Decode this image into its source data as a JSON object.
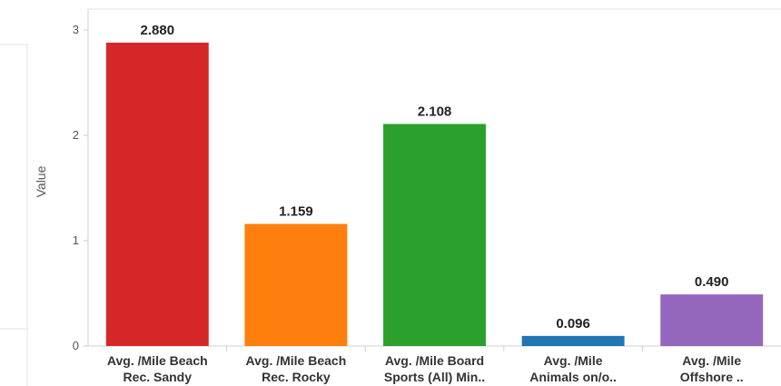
{
  "chart_data": {
    "type": "bar",
    "ylabel": "Value",
    "ylim": [
      0,
      3.2
    ],
    "yticks": [
      "0",
      "1",
      "2",
      "3"
    ],
    "grid": false,
    "categories": [
      [
        "Avg. /Mile Beach",
        "Rec. Sandy"
      ],
      [
        "Avg. /Mile Beach",
        "Rec. Rocky"
      ],
      [
        "Avg. /Mile Board",
        "Sports (All) Min.."
      ],
      [
        "Avg. /Mile",
        "Animals on/o.."
      ],
      [
        "Avg. /Mile",
        "Offshore .."
      ]
    ],
    "values": [
      2.88,
      1.159,
      2.108,
      0.096,
      0.49
    ],
    "value_labels": [
      "2.880",
      "1.159",
      "2.108",
      "0.096",
      "0.490"
    ],
    "colors": [
      "#d62728",
      "#ff7f0e",
      "#2ca02c",
      "#1f77b4",
      "#9467bd"
    ]
  }
}
